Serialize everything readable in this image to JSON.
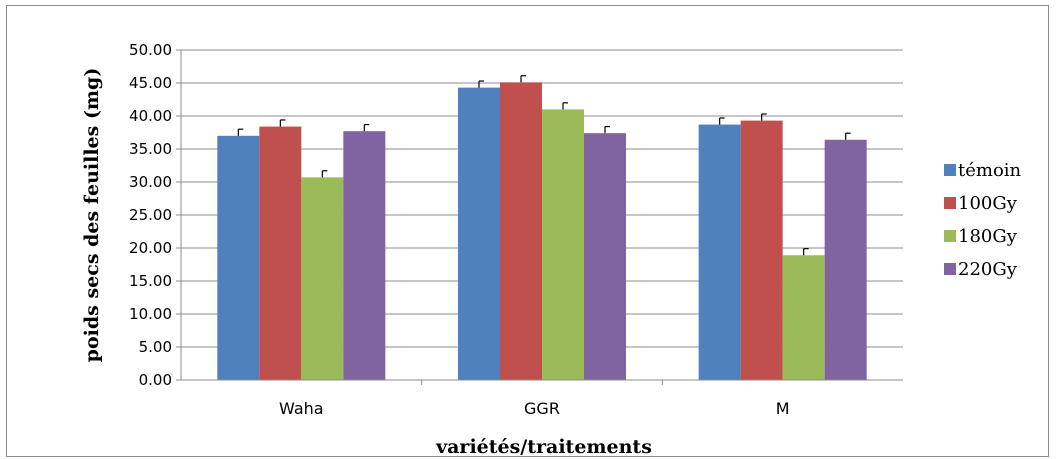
{
  "chart_data": {
    "type": "bar",
    "title": "",
    "xlabel": "variétés/traitements",
    "ylabel": "poids secs des feuilles (mg)",
    "ylim": [
      0,
      50
    ],
    "y_ticks": [
      "0.00",
      "5.00",
      "10.00",
      "15.00",
      "20.00",
      "25.00",
      "30.00",
      "35.00",
      "40.00",
      "45.00",
      "50.00"
    ],
    "grid": true,
    "legend_position": "right",
    "error_bars": true,
    "categories": [
      "Waha",
      "GGR",
      "M"
    ],
    "series": [
      {
        "name": "témoin",
        "color": "#4f81bd",
        "values": [
          37.0,
          44.3,
          38.7
        ],
        "errors": [
          1.0,
          1.0,
          1.0
        ]
      },
      {
        "name": "100Gy",
        "color": "#c0504d",
        "values": [
          38.4,
          45.1,
          39.3
        ],
        "errors": [
          1.0,
          1.0,
          1.0
        ]
      },
      {
        "name": "180Gy",
        "color": "#9bbb59",
        "values": [
          30.7,
          41.0,
          18.9
        ],
        "errors": [
          1.0,
          1.0,
          1.0
        ]
      },
      {
        "name": "220Gy",
        "color": "#8064a2",
        "values": [
          37.7,
          37.4,
          36.4
        ],
        "errors": [
          1.0,
          1.0,
          1.0
        ]
      }
    ]
  }
}
